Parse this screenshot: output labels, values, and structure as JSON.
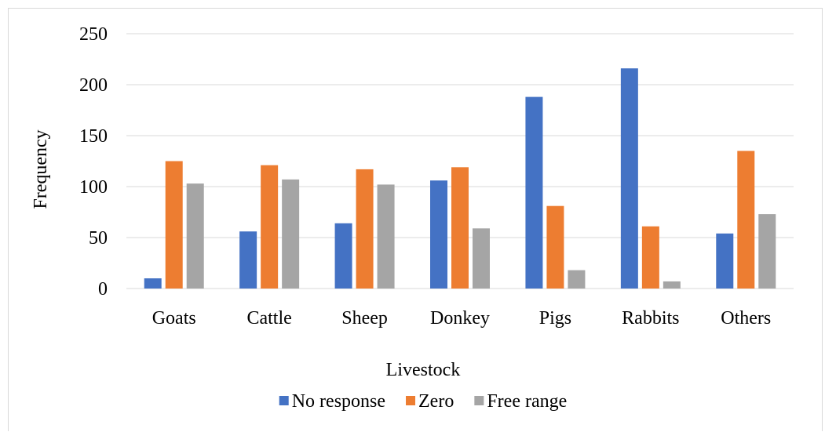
{
  "chart_data": {
    "type": "bar",
    "title": "",
    "xlabel": "Livestock",
    "ylabel": "Frequency",
    "ylim": [
      0,
      250
    ],
    "yticks": [
      0,
      50,
      100,
      150,
      200,
      250
    ],
    "grid": true,
    "legend_position": "bottom",
    "categories": [
      "Goats",
      "Cattle",
      "Sheep",
      "Donkey",
      "Pigs",
      "Rabbits",
      "Others"
    ],
    "series": [
      {
        "name": "No response",
        "color": "#4472c4",
        "values": [
          10,
          56,
          64,
          106,
          188,
          216,
          54
        ]
      },
      {
        "name": "Zero",
        "color": "#ed7d31",
        "values": [
          125,
          121,
          117,
          119,
          81,
          61,
          135
        ]
      },
      {
        "name": "Free range",
        "color": "#a5a5a5",
        "values": [
          103,
          107,
          102,
          59,
          18,
          7,
          73
        ]
      }
    ]
  }
}
